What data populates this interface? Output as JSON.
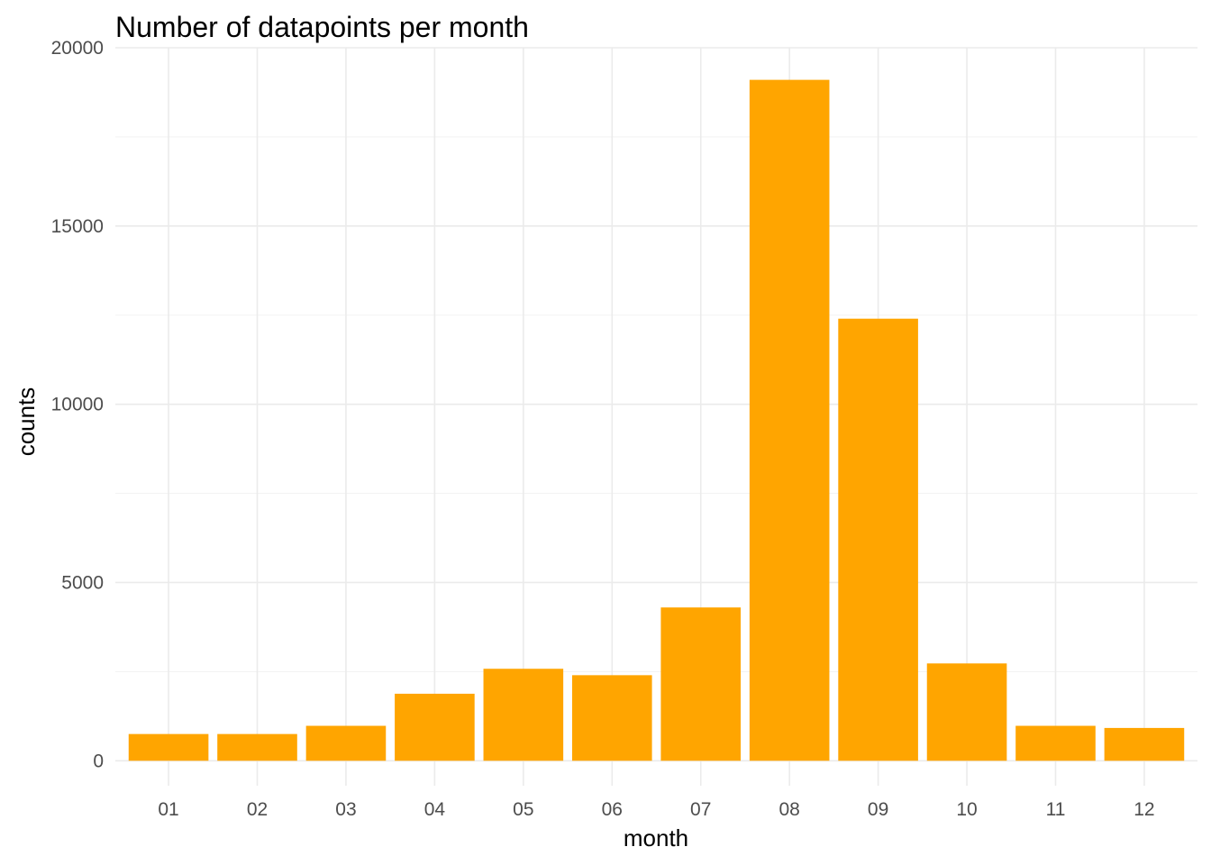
{
  "chart_data": {
    "type": "bar",
    "title": "Number of datapoints per month",
    "xlabel": "month",
    "ylabel": "counts",
    "categories": [
      "01",
      "02",
      "03",
      "04",
      "05",
      "06",
      "07",
      "08",
      "09",
      "10",
      "11",
      "12"
    ],
    "values": [
      750,
      750,
      980,
      1880,
      2580,
      2400,
      4300,
      19100,
      12400,
      2730,
      980,
      920
    ],
    "ylim": [
      -700,
      20000
    ],
    "y_ticks": [
      0,
      5000,
      10000,
      15000,
      20000
    ],
    "y_tick_labels": [
      "0",
      "5000",
      "10000",
      "15000",
      "20000"
    ],
    "bar_color": "#FFA500",
    "grid": true,
    "legend": "none"
  }
}
